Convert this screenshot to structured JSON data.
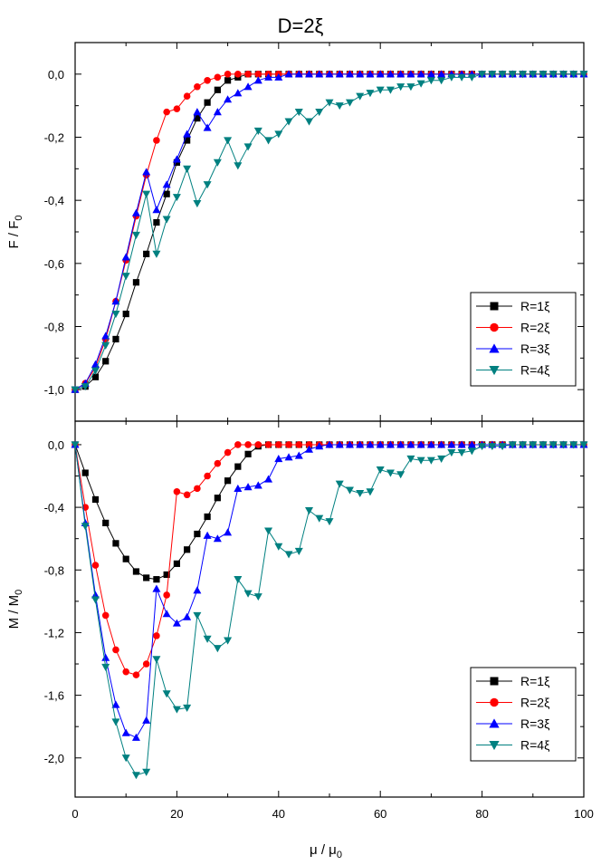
{
  "figure": {
    "title": "D=2ξ",
    "xlabel": "μ / μ",
    "xlabel_sub": "0",
    "x_ticks": [
      "0",
      "20",
      "40",
      "60",
      "80",
      "100"
    ]
  },
  "colors": {
    "R1": "#000000",
    "R2": "#ff0000",
    "R3": "#0000ff",
    "R4": "#008080"
  },
  "chart_data": [
    {
      "type": "line",
      "title": "D=2ξ",
      "xlabel": "μ / μ0",
      "ylabel": "F / F0",
      "xlim": [
        0,
        100
      ],
      "ylim": [
        -1.1,
        0.1
      ],
      "y_ticks": [
        "0,0",
        "-0,2",
        "-0,4",
        "-0,6",
        "-0,8",
        "-1,0"
      ],
      "y_tick_values": [
        0,
        -0.2,
        -0.4,
        -0.6,
        -0.8,
        -1.0
      ],
      "ylabel_text": "F / F",
      "ylabel_sub": "0",
      "legend_position": "bottom-right",
      "grid": false,
      "series": [
        {
          "name": "R=1ξ",
          "marker": "square",
          "color": "#000000",
          "x": [
            0,
            2,
            4,
            6,
            8,
            10,
            12,
            14,
            16,
            18,
            20,
            22,
            24,
            26,
            28,
            30,
            32,
            34,
            36,
            38,
            40,
            42,
            44,
            46,
            48,
            50,
            52,
            54,
            56,
            58,
            60,
            62,
            64,
            66,
            68,
            70,
            72,
            74,
            76,
            78,
            80,
            82,
            84,
            86,
            88,
            90,
            92,
            94,
            96,
            98,
            100
          ],
          "y": [
            -1.0,
            -0.99,
            -0.96,
            -0.91,
            -0.84,
            -0.76,
            -0.66,
            -0.57,
            -0.47,
            -0.38,
            -0.28,
            -0.21,
            -0.14,
            -0.09,
            -0.05,
            -0.02,
            -0.01,
            0,
            0,
            0,
            0,
            0,
            0,
            0,
            0,
            0,
            0,
            0,
            0,
            0,
            0,
            0,
            0,
            0,
            0,
            0,
            0,
            0,
            0,
            0,
            0,
            0,
            0,
            0,
            0,
            0,
            0,
            0,
            0,
            0,
            0
          ]
        },
        {
          "name": "R=2ξ",
          "marker": "circle",
          "color": "#ff0000",
          "x": [
            0,
            2,
            4,
            6,
            8,
            10,
            12,
            14,
            16,
            18,
            20,
            22,
            24,
            26,
            28,
            30,
            32,
            34,
            36,
            38,
            40,
            42,
            44,
            46,
            48,
            50,
            52,
            54,
            56,
            58,
            60,
            62,
            64,
            66,
            68,
            70,
            72,
            74,
            76,
            78,
            80,
            82,
            84,
            86,
            88,
            90,
            92,
            94,
            96,
            98,
            100
          ],
          "y": [
            -1.0,
            -0.98,
            -0.93,
            -0.84,
            -0.72,
            -0.59,
            -0.45,
            -0.32,
            -0.21,
            -0.12,
            -0.11,
            -0.07,
            -0.04,
            -0.02,
            -0.01,
            0,
            0,
            0,
            0,
            0,
            0,
            0,
            0,
            0,
            0,
            0,
            0,
            0,
            0,
            0,
            0,
            0,
            0,
            0,
            0,
            0,
            0,
            0,
            0,
            0,
            0,
            0,
            0,
            0,
            0,
            0,
            0,
            0,
            0,
            0,
            0
          ]
        },
        {
          "name": "R=3ξ",
          "marker": "triangle-up",
          "color": "#0000ff",
          "x": [
            0,
            2,
            4,
            6,
            8,
            10,
            12,
            14,
            16,
            18,
            20,
            22,
            24,
            26,
            28,
            30,
            32,
            34,
            36,
            38,
            40,
            42,
            44,
            46,
            48,
            50,
            52,
            54,
            56,
            58,
            60,
            62,
            64,
            66,
            68,
            70,
            72,
            74,
            76,
            78,
            80,
            82,
            84,
            86,
            88,
            90,
            92,
            94,
            96,
            98,
            100
          ],
          "y": [
            -1.0,
            -0.98,
            -0.92,
            -0.83,
            -0.72,
            -0.58,
            -0.44,
            -0.31,
            -0.43,
            -0.35,
            -0.27,
            -0.19,
            -0.12,
            -0.17,
            -0.12,
            -0.08,
            -0.06,
            -0.04,
            -0.02,
            -0.01,
            -0.01,
            0,
            0,
            0,
            0,
            0,
            0,
            0,
            0,
            0,
            0,
            0,
            0,
            0,
            0,
            0,
            0,
            0,
            0,
            0,
            0,
            0,
            0,
            0,
            0,
            0,
            0,
            0,
            0,
            0,
            0
          ]
        },
        {
          "name": "R=4ξ",
          "marker": "triangle-down",
          "color": "#008080",
          "x": [
            0,
            2,
            4,
            6,
            8,
            10,
            12,
            14,
            16,
            18,
            20,
            22,
            24,
            26,
            28,
            30,
            32,
            34,
            36,
            38,
            40,
            42,
            44,
            46,
            48,
            50,
            52,
            54,
            56,
            58,
            60,
            62,
            64,
            66,
            68,
            70,
            72,
            74,
            76,
            78,
            80,
            82,
            84,
            86,
            88,
            90,
            92,
            94,
            96,
            98,
            100
          ],
          "y": [
            -1.0,
            -0.99,
            -0.94,
            -0.86,
            -0.76,
            -0.64,
            -0.51,
            -0.38,
            -0.57,
            -0.46,
            -0.39,
            -0.3,
            -0.41,
            -0.35,
            -0.28,
            -0.21,
            -0.29,
            -0.23,
            -0.18,
            -0.21,
            -0.19,
            -0.15,
            -0.12,
            -0.15,
            -0.12,
            -0.09,
            -0.1,
            -0.09,
            -0.07,
            -0.06,
            -0.05,
            -0.05,
            -0.04,
            -0.04,
            -0.03,
            -0.02,
            -0.02,
            -0.01,
            -0.01,
            -0.01,
            0,
            0,
            0,
            0,
            0,
            0,
            0,
            0,
            0,
            0,
            0
          ]
        }
      ]
    },
    {
      "type": "line",
      "xlabel": "μ / μ0",
      "ylabel": "M / M0",
      "xlim": [
        0,
        100
      ],
      "ylim": [
        -2.25,
        0.15
      ],
      "y_ticks": [
        "0,0",
        "-0,4",
        "-0,8",
        "-1,2",
        "-1,6",
        "-2,0"
      ],
      "y_tick_values": [
        0,
        -0.4,
        -0.8,
        -1.2,
        -1.6,
        -2.0
      ],
      "ylabel_text": "M / M",
      "ylabel_sub": "0",
      "legend_position": "bottom-right",
      "grid": false,
      "series": [
        {
          "name": "R=1ξ",
          "marker": "square",
          "color": "#000000",
          "x": [
            0,
            2,
            4,
            6,
            8,
            10,
            12,
            14,
            16,
            18,
            20,
            22,
            24,
            26,
            28,
            30,
            32,
            34,
            36,
            38,
            40,
            42,
            44,
            46,
            48,
            50,
            52,
            54,
            56,
            58,
            60,
            62,
            64,
            66,
            68,
            70,
            72,
            74,
            76,
            78,
            80,
            82,
            84,
            86,
            88,
            90,
            92,
            94,
            96,
            98,
            100
          ],
          "y": [
            0,
            -0.18,
            -0.35,
            -0.5,
            -0.63,
            -0.73,
            -0.81,
            -0.85,
            -0.86,
            -0.83,
            -0.76,
            -0.67,
            -0.57,
            -0.46,
            -0.34,
            -0.23,
            -0.14,
            -0.06,
            -0.01,
            0,
            0,
            0,
            0,
            0,
            0,
            0,
            0,
            0,
            0,
            0,
            0,
            0,
            0,
            0,
            0,
            0,
            0,
            0,
            0,
            0,
            0,
            0,
            0,
            0,
            0,
            0,
            0,
            0,
            0,
            0,
            0
          ]
        },
        {
          "name": "R=2ξ",
          "marker": "circle",
          "color": "#ff0000",
          "x": [
            0,
            2,
            4,
            6,
            8,
            10,
            12,
            14,
            16,
            18,
            20,
            22,
            24,
            26,
            28,
            30,
            32,
            34,
            36,
            38,
            40,
            42,
            44,
            46,
            48,
            50,
            52,
            54,
            56,
            58,
            60,
            62,
            64,
            66,
            68,
            70,
            72,
            74,
            76,
            78,
            80,
            82,
            84,
            86,
            88,
            90,
            92,
            94,
            96,
            98,
            100
          ],
          "y": [
            0,
            -0.4,
            -0.77,
            -1.09,
            -1.31,
            -1.45,
            -1.47,
            -1.4,
            -1.22,
            -0.96,
            -0.3,
            -0.32,
            -0.28,
            -0.2,
            -0.12,
            -0.05,
            0,
            0,
            0,
            0,
            0,
            0,
            0,
            0,
            0,
            0,
            0,
            0,
            0,
            0,
            0,
            0,
            0,
            0,
            0,
            0,
            0,
            0,
            0,
            0,
            0,
            0,
            0,
            0,
            0,
            0,
            0,
            0,
            0,
            0,
            0
          ]
        },
        {
          "name": "R=3ξ",
          "marker": "triangle-up",
          "color": "#0000ff",
          "x": [
            0,
            2,
            4,
            6,
            8,
            10,
            12,
            14,
            16,
            18,
            20,
            22,
            24,
            26,
            28,
            30,
            32,
            34,
            36,
            38,
            40,
            42,
            44,
            46,
            48,
            50,
            52,
            54,
            56,
            58,
            60,
            62,
            64,
            66,
            68,
            70,
            72,
            74,
            76,
            78,
            80,
            82,
            84,
            86,
            88,
            90,
            92,
            94,
            96,
            98,
            100
          ],
          "y": [
            0,
            -0.5,
            -0.96,
            -1.36,
            -1.66,
            -1.84,
            -1.87,
            -1.76,
            -0.92,
            -1.08,
            -1.14,
            -1.1,
            -0.93,
            -0.58,
            -0.6,
            -0.56,
            -0.28,
            -0.27,
            -0.26,
            -0.22,
            -0.09,
            -0.08,
            -0.07,
            -0.03,
            -0.01,
            0,
            0,
            0,
            0,
            0,
            0,
            0,
            0,
            0,
            0,
            0,
            0,
            0,
            0,
            0,
            0,
            0,
            0,
            0,
            0,
            0,
            0,
            0,
            0,
            0,
            0
          ]
        },
        {
          "name": "R=4ξ",
          "marker": "triangle-down",
          "color": "#008080",
          "x": [
            0,
            2,
            4,
            6,
            8,
            10,
            12,
            14,
            16,
            18,
            20,
            22,
            24,
            26,
            28,
            30,
            32,
            34,
            36,
            38,
            40,
            42,
            44,
            46,
            48,
            50,
            52,
            54,
            56,
            58,
            60,
            62,
            64,
            66,
            68,
            70,
            72,
            74,
            76,
            78,
            80,
            82,
            84,
            86,
            88,
            90,
            92,
            94,
            96,
            98,
            100
          ],
          "y": [
            0,
            -0.52,
            -0.99,
            -1.42,
            -1.77,
            -2.0,
            -2.11,
            -2.09,
            -1.37,
            -1.59,
            -1.69,
            -1.68,
            -1.09,
            -1.24,
            -1.3,
            -1.25,
            -0.86,
            -0.95,
            -0.97,
            -0.55,
            -0.65,
            -0.7,
            -0.68,
            -0.42,
            -0.47,
            -0.49,
            -0.25,
            -0.29,
            -0.31,
            -0.3,
            -0.16,
            -0.18,
            -0.19,
            -0.09,
            -0.1,
            -0.1,
            -0.09,
            -0.05,
            -0.05,
            -0.04,
            -0.01,
            -0.01,
            -0.01,
            0,
            0,
            0,
            0,
            0,
            0,
            0,
            0
          ]
        }
      ]
    }
  ]
}
